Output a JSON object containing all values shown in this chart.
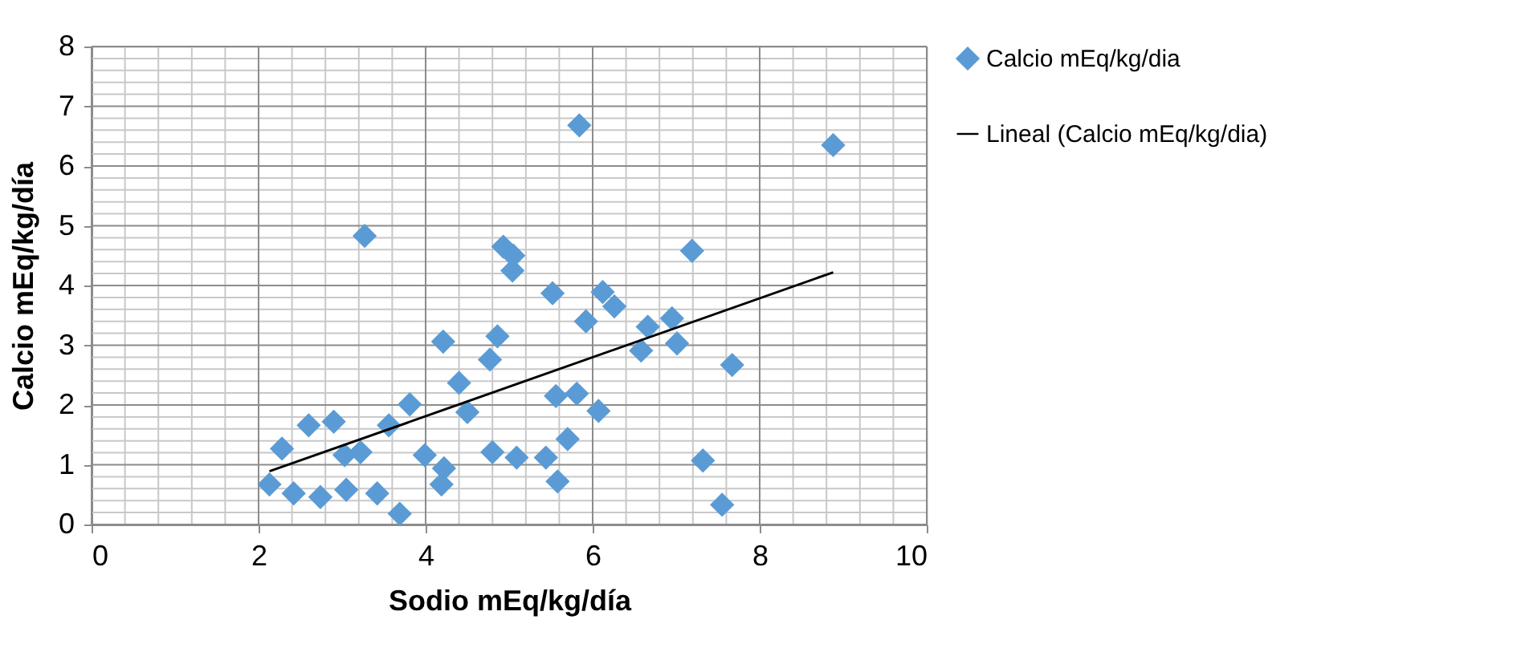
{
  "chart_data": {
    "type": "scatter",
    "xlabel": "Sodio mEq/kg/día",
    "ylabel": "Calcio mEq/kg/día",
    "xlim": [
      0,
      10
    ],
    "ylim": [
      0,
      8
    ],
    "xticks": [
      0,
      {
        "value": 0.4,
        "label": null
      },
      {
        "value": 0.8,
        "label": null
      },
      {
        "value": 1.2,
        "label": null
      },
      {
        "value": 1.6,
        "label": null
      },
      2,
      {
        "value": 2.4,
        "label": null
      },
      {
        "value": 2.8,
        "label": null
      },
      {
        "value": 3.2,
        "label": null
      },
      {
        "value": 3.6,
        "label": null
      },
      4,
      {
        "value": 4.4,
        "label": null
      },
      {
        "value": 4.8,
        "label": null
      },
      {
        "value": 5.2,
        "label": null
      },
      {
        "value": 5.6,
        "label": null
      },
      6,
      {
        "value": 6.4,
        "label": null
      },
      {
        "value": 6.8,
        "label": null
      },
      {
        "value": 7.2,
        "label": null
      },
      {
        "value": 7.6,
        "label": null
      },
      8,
      {
        "value": 8.4,
        "label": null
      },
      {
        "value": 8.8,
        "label": null
      },
      {
        "value": 9.2,
        "label": null
      },
      {
        "value": 9.6,
        "label": null
      },
      10
    ],
    "yticks": [
      0,
      {
        "value": 0.2,
        "label": null
      },
      {
        "value": 0.4,
        "label": null
      },
      {
        "value": 0.6,
        "label": null
      },
      {
        "value": 0.8,
        "label": null
      },
      1,
      {
        "value": 1.2,
        "label": null
      },
      {
        "value": 1.4,
        "label": null
      },
      {
        "value": 1.6,
        "label": null
      },
      {
        "value": 1.8,
        "label": null
      },
      2,
      {
        "value": 2.2,
        "label": null
      },
      {
        "value": 2.4,
        "label": null
      },
      {
        "value": 2.6,
        "label": null
      },
      {
        "value": 2.8,
        "label": null
      },
      3,
      {
        "value": 3.2,
        "label": null
      },
      {
        "value": 3.4,
        "label": null
      },
      {
        "value": 3.6,
        "label": null
      },
      {
        "value": 3.8,
        "label": null
      },
      4,
      {
        "value": 4.2,
        "label": null
      },
      {
        "value": 4.4,
        "label": null
      },
      {
        "value": 4.6,
        "label": null
      },
      {
        "value": 4.8,
        "label": null
      },
      5,
      {
        "value": 5.2,
        "label": null
      },
      {
        "value": 5.4,
        "label": null
      },
      {
        "value": 5.6,
        "label": null
      },
      {
        "value": 5.8,
        "label": null
      },
      6,
      {
        "value": 6.2,
        "label": null
      },
      {
        "value": 6.4,
        "label": null
      },
      {
        "value": 6.6,
        "label": null
      },
      {
        "value": 6.8,
        "label": null
      },
      7,
      {
        "value": 7.2,
        "label": null
      },
      {
        "value": 7.4,
        "label": null
      },
      {
        "value": 7.6,
        "label": null
      },
      {
        "value": 7.8,
        "label": null
      },
      8
    ],
    "grid": true,
    "legend": "right",
    "series": [
      {
        "name": "Calcio  mEq/kg/dia",
        "color": "#5b9bd5",
        "marker": "diamond",
        "x": [
          2.13,
          2.28,
          2.42,
          2.6,
          2.74,
          2.9,
          3.03,
          3.05,
          3.22,
          3.27,
          3.42,
          3.56,
          3.69,
          3.81,
          3.99,
          4.21,
          4.22,
          4.19,
          4.4,
          4.5,
          4.77,
          4.8,
          4.86,
          4.93,
          5.05,
          5.04,
          5.09,
          5.84,
          8.88,
          7.19,
          5.52,
          6.12,
          6.26,
          5.92,
          6.66,
          6.95,
          6.58,
          7.01,
          7.67,
          5.56,
          5.81,
          6.07,
          5.7,
          5.44,
          5.58,
          7.32,
          7.55
        ],
        "values": [
          0.67,
          1.27,
          0.52,
          1.66,
          0.46,
          1.72,
          1.16,
          0.58,
          1.21,
          4.83,
          0.52,
          1.66,
          0.18,
          2.01,
          1.16,
          3.06,
          0.94,
          0.67,
          2.37,
          1.88,
          2.76,
          1.21,
          3.15,
          4.65,
          4.5,
          4.25,
          1.12,
          6.68,
          6.35,
          4.58,
          3.87,
          3.89,
          3.65,
          3.4,
          3.31,
          3.45,
          2.91,
          3.03,
          2.67,
          2.15,
          2.19,
          1.9,
          1.43,
          1.12,
          0.72,
          1.07,
          0.33
        ]
      },
      {
        "name": "Lineal (Calcio  mEq/kg/dia)",
        "type": "line",
        "color": "#000000",
        "marker": "none",
        "line_style": "solid",
        "x": [
          2.13,
          8.88
        ],
        "values": [
          0.89,
          4.22
        ]
      }
    ]
  }
}
